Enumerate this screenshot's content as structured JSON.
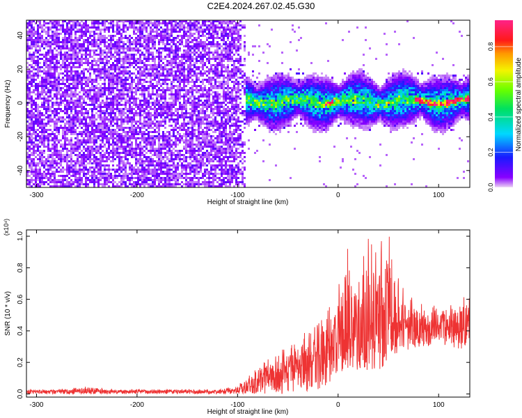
{
  "figure": {
    "title": "C2E4.2024.267.02.45.G30"
  },
  "chart_data": [
    {
      "type": "heatmap",
      "xlabel": "Height of straight line (km)",
      "ylabel": "Frequency (Hz)",
      "xlim": [
        -310,
        131
      ],
      "ylim": [
        -50,
        49
      ],
      "xticks": [
        -300,
        -200,
        -100,
        0,
        100
      ],
      "yticks": [
        -40,
        -20,
        0,
        20,
        40
      ],
      "colorbar": {
        "label": "Normalized spectral amplitude",
        "range": [
          0.0,
          0.95
        ],
        "ticks": [
          0.0,
          0.2,
          0.4,
          0.6,
          0.8
        ],
        "colormap": "rainbow (violet → blue → cyan → green → yellow → red → magenta)"
      },
      "description_regions": [
        {
          "x_range": [
            -310,
            -92
          ],
          "freq_range": [
            -50,
            49
          ],
          "amplitude": "low (0.02–0.15), broadband noise"
        },
        {
          "x_range": [
            -92,
            131
          ],
          "freq_range": [
            -10,
            12
          ],
          "amplitude": "medium (0.1–0.6), narrowband signal near 0–3 Hz"
        },
        {
          "x_range": [
            -15,
            -5
          ],
          "freq_range": [
            0,
            2
          ],
          "amplitude": "peak ~0.95"
        },
        {
          "x_range": [
            75,
            131
          ],
          "freq_range": [
            1,
            3
          ],
          "amplitude": "peak ~0.95"
        }
      ],
      "grid": false
    },
    {
      "type": "line",
      "xlabel": "Height of straight line (km)",
      "ylabel": "SNR (10 * v/v)",
      "y_multiplier": "(x10⁴)",
      "xlim": [
        -310,
        131
      ],
      "ylim": [
        -0.02,
        1.04
      ],
      "xticks": [
        -300,
        -200,
        -100,
        0,
        100
      ],
      "yticks": [
        0.0,
        0.2,
        0.4,
        0.6,
        0.8,
        1.0
      ],
      "series": [
        {
          "color": "#ee3333",
          "x": [
            -310,
            -280,
            -250,
            -220,
            -200,
            -180,
            -150,
            -120,
            -100,
            -90,
            -80,
            -70,
            -60,
            -50,
            -40,
            -30,
            -20,
            -10,
            0,
            10,
            20,
            30,
            40,
            50,
            60,
            70,
            80,
            90,
            100,
            110,
            120,
            131
          ],
          "envelope_low": [
            0.0,
            0.0,
            0.0,
            0.0,
            0.0,
            0.0,
            0.0,
            0.0,
            0.0,
            0.0,
            0.0,
            0.0,
            0.0,
            0.0,
            0.01,
            0.02,
            0.02,
            0.05,
            0.1,
            0.15,
            0.15,
            0.15,
            0.15,
            0.2,
            0.25,
            0.28,
            0.3,
            0.3,
            0.32,
            0.3,
            0.28,
            0.3
          ],
          "envelope_mean": [
            0.015,
            0.015,
            0.02,
            0.015,
            0.015,
            0.015,
            0.015,
            0.015,
            0.02,
            0.05,
            0.08,
            0.1,
            0.12,
            0.15,
            0.18,
            0.2,
            0.22,
            0.28,
            0.33,
            0.38,
            0.42,
            0.45,
            0.48,
            0.5,
            0.46,
            0.44,
            0.43,
            0.42,
            0.43,
            0.42,
            0.41,
            0.42
          ],
          "envelope_high": [
            0.03,
            0.03,
            0.05,
            0.03,
            0.03,
            0.03,
            0.03,
            0.03,
            0.05,
            0.14,
            0.2,
            0.24,
            0.28,
            0.3,
            0.35,
            0.42,
            0.45,
            0.55,
            0.7,
            0.95,
            0.85,
            1.0,
            0.95,
            1.04,
            0.75,
            0.62,
            0.6,
            0.55,
            0.58,
            0.55,
            0.62,
            0.66
          ]
        }
      ],
      "grid": false
    }
  ]
}
